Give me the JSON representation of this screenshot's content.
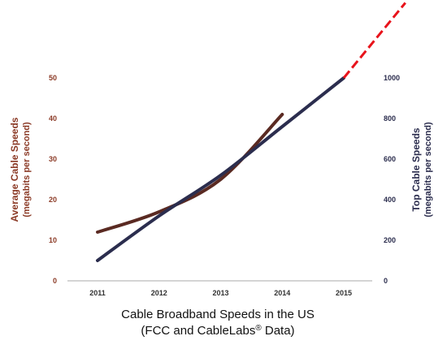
{
  "chart_data": {
    "type": "line",
    "title": "Cable Broadband Speeds in the US",
    "subtitle_prefix": "(FCC and CableLabs",
    "subtitle_sup": "®",
    "subtitle_suffix": " Data)",
    "x": [
      2011,
      2012,
      2013,
      2014,
      2015
    ],
    "x_tick_labels": [
      "2011",
      "2012",
      "2013",
      "2014",
      "2015"
    ],
    "left_axis": {
      "label": "Average Cable Speeds",
      "sublabel": "(megabits per second)",
      "ylim": [
        0,
        50
      ],
      "ticks": [
        "0",
        "10",
        "20",
        "30",
        "40",
        "50"
      ],
      "color": "#8b3a26"
    },
    "right_axis": {
      "label": "Top Cable Speeds",
      "sublabel": "(megabits per second)",
      "ylim": [
        0,
        1000
      ],
      "ticks": [
        "0",
        "200",
        "400",
        "600",
        "800",
        "1000"
      ],
      "color": "#2b2d4e"
    },
    "series": [
      {
        "axis": "left",
        "color": "#5a2a22",
        "style": "solid",
        "x": [
          2011,
          2012,
          2013,
          2014
        ],
        "values": [
          12,
          17,
          25,
          41
        ]
      },
      {
        "axis": "right",
        "color": "#2b2d4e",
        "style": "solid",
        "x": [
          2011,
          2012,
          2013,
          2014,
          2015
        ],
        "values": [
          100,
          320,
          520,
          760,
          1000
        ]
      },
      {
        "axis": "right",
        "color": "#e8131b",
        "style": "dashed",
        "x": [
          2015,
          2016
        ],
        "values": [
          1000,
          1370
        ]
      }
    ],
    "grid": false,
    "legend": "none"
  }
}
